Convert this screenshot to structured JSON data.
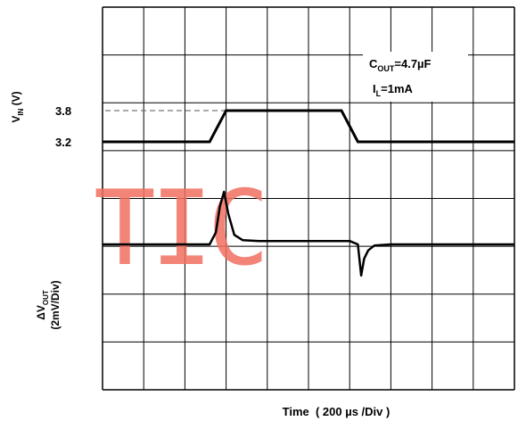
{
  "chart_data": {
    "type": "line",
    "xlabel": "Time  ( 200 µs /Div )",
    "x_units": "divisions",
    "grid": true,
    "grid_divisions": {
      "x": 10,
      "y": 8
    },
    "xlim": [
      0,
      10
    ],
    "vin_axis": {
      "label_main": "V",
      "label_sub": "IN",
      "label_unit": " (V)",
      "tick_labels": [
        "3.8",
        "3.2"
      ],
      "reference_line_level": 3.8
    },
    "vout_axis": {
      "label_main": "ΔV",
      "label_sub": "OUT",
      "label_line2": "(2mV/Div)"
    },
    "annotation": {
      "cout": {
        "main": "C",
        "sub": "OUT",
        "value": "=4.7µF"
      },
      "il": {
        "main": "I",
        "sub": "L",
        "value": "=1mA"
      }
    },
    "watermark": "TIC",
    "colors": {
      "trace": "#000000",
      "grid": "#000000",
      "watermark": "#f07060",
      "reference_line": "#777777"
    },
    "series": [
      {
        "name": "V_IN",
        "unit": "V",
        "x": [
          0,
          2.6,
          3.0,
          5.8,
          6.2,
          10
        ],
        "y": [
          3.2,
          3.2,
          3.8,
          3.8,
          3.2,
          3.2
        ]
      },
      {
        "name": "ΔV_OUT",
        "unit": "mV",
        "x": [
          0,
          2.6,
          2.75,
          2.85,
          2.95,
          3.05,
          3.2,
          3.4,
          3.8,
          6.0,
          6.2,
          6.28,
          6.35,
          6.45,
          6.6,
          7.0,
          10
        ],
        "y": [
          0,
          0,
          0.5,
          1.6,
          2.2,
          1.3,
          0.4,
          0.18,
          0.14,
          0.14,
          0,
          -1.3,
          -0.6,
          -0.25,
          -0.05,
          0,
          0
        ]
      }
    ]
  }
}
